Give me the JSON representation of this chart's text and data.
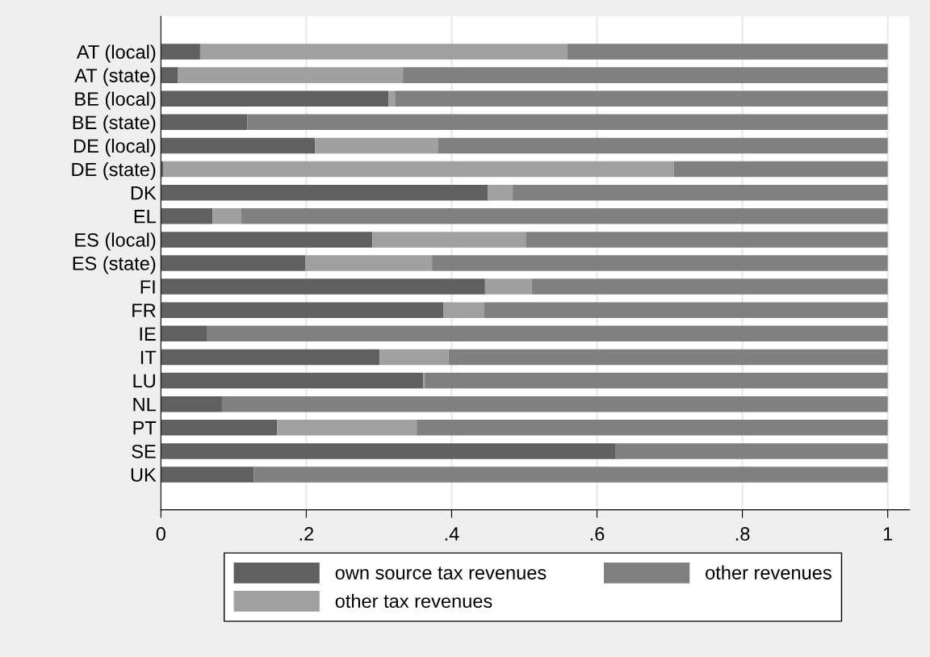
{
  "chart_data": {
    "type": "bar",
    "orientation": "horizontal",
    "stacked": true,
    "categories": [
      "AT (local)",
      "AT (state)",
      "BE (local)",
      "BE (state)",
      "DE (local)",
      "DE (state)",
      "DK",
      "EL",
      "ES (local)",
      "ES (state)",
      "FI",
      "FR",
      "IE",
      "IT",
      "LU",
      "NL",
      "PT",
      "SE",
      "UK"
    ],
    "series": [
      {
        "name": "own source tax revenues",
        "color": "#606060",
        "values": [
          0.054,
          0.023,
          0.313,
          0.119,
          0.212,
          0.003,
          0.45,
          0.071,
          0.291,
          0.199,
          0.446,
          0.389,
          0.063,
          0.301,
          0.361,
          0.084,
          0.16,
          0.625,
          0.128
        ]
      },
      {
        "name": "other tax revenues",
        "color": "#a0a0a0",
        "values": [
          0.505,
          0.31,
          0.009,
          0,
          0.169,
          0.703,
          0.034,
          0.039,
          0.211,
          0.174,
          0.064,
          0.056,
          0,
          0.095,
          0.002,
          0,
          0.192,
          0,
          0
        ]
      },
      {
        "name": "other revenues",
        "color": "#808080",
        "values": [
          0.441,
          0.667,
          0.678,
          0.881,
          0.619,
          0.294,
          0.516,
          0.89,
          0.498,
          0.627,
          0.49,
          0.555,
          0.937,
          0.604,
          0.637,
          0.916,
          0.648,
          0.375,
          0.872
        ]
      }
    ],
    "xlim": [
      0,
      1.03
    ],
    "xticks": [
      {
        "value": 0,
        "label": "0"
      },
      {
        "value": 0.2,
        "label": ".2"
      },
      {
        "value": 0.4,
        "label": ".4"
      },
      {
        "value": 0.6,
        "label": ".6"
      },
      {
        "value": 0.8,
        "label": ".8"
      },
      {
        "value": 1,
        "label": "1"
      }
    ],
    "grid": "x",
    "legend": "bottom"
  }
}
